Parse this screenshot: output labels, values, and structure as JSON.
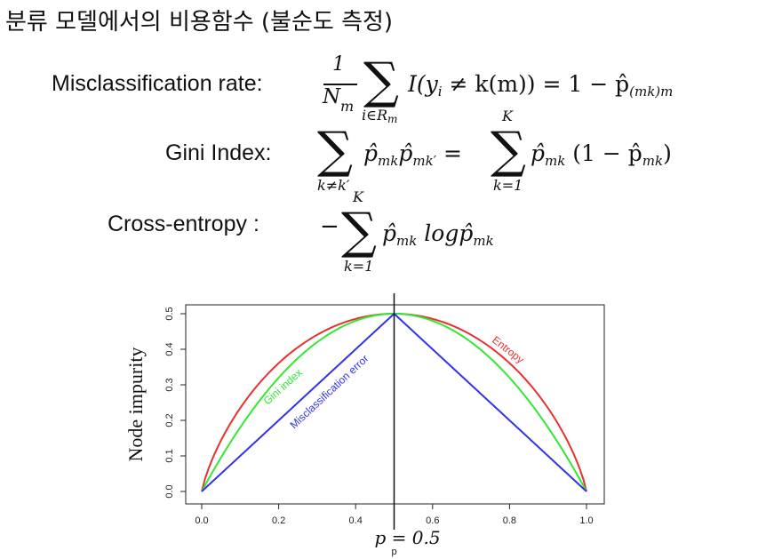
{
  "page": {
    "title": "분류 모델에서의 비용함수 (불순도 측정)"
  },
  "formulas": {
    "misclassification_label": "Misclassification rate:",
    "gini_label": "Gini Index:",
    "cross_entropy_label": "Cross-entropy  :",
    "mis_numerator": "1",
    "mis_denominator": "N",
    "mis_denominator_sub": "m",
    "mis_sum_sub": "i∈R",
    "mis_sum_sub_m": "m",
    "mis_body": "I(y",
    "mis_body_i": "i",
    "mis_body_rest": " ≠ k(m)) = 1 − p̂",
    "mis_body_sub": "(mk)m",
    "gini_sum_sub": "k≠k′",
    "gini_body": "p̂",
    "gini_body_sub1": "mk",
    "gini_body_p2": "p̂",
    "gini_body_sub2": "mk′",
    "gini_eq": " = ",
    "gini_sum2_top": "K",
    "gini_sum2_sub": "k=1",
    "gini_rhs_p": "p̂",
    "gini_rhs_sub": "mk",
    "gini_rhs_paren": " (1 − p̂",
    "gini_rhs_sub2": "mk",
    "gini_rhs_close": ")",
    "ce_minus": "−",
    "ce_sum_top": "K",
    "ce_sum_sub": "k=1",
    "ce_p": "p̂",
    "ce_p_sub": "mk",
    "ce_log": " logp̂",
    "ce_log_sub": "mk"
  },
  "chart_data": {
    "type": "line",
    "xlabel": "p",
    "ylabel": "Node impurity",
    "xlim": [
      0.0,
      1.0
    ],
    "ylim": [
      0.0,
      0.5
    ],
    "xticks": [
      "0.0",
      "0.2",
      "0.4",
      "0.6",
      "0.8",
      "1.0"
    ],
    "yticks": [
      "0.0",
      "0.1",
      "0.2",
      "0.3",
      "0.4",
      "0.5"
    ],
    "grid": false,
    "vline": {
      "x": 0.5,
      "label": "p = 0.5"
    },
    "x": [
      0.0,
      0.05,
      0.1,
      0.15,
      0.2,
      0.25,
      0.3,
      0.35,
      0.4,
      0.45,
      0.5,
      0.55,
      0.6,
      0.65,
      0.7,
      0.75,
      0.8,
      0.85,
      0.9,
      0.95,
      1.0
    ],
    "series": [
      {
        "name": "Entropy",
        "color": "#e8312f",
        "values": [
          0.0,
          0.143,
          0.234,
          0.305,
          0.361,
          0.406,
          0.441,
          0.467,
          0.485,
          0.496,
          0.5,
          0.496,
          0.485,
          0.467,
          0.441,
          0.406,
          0.361,
          0.305,
          0.234,
          0.143,
          0.0
        ]
      },
      {
        "name": "Gini index",
        "color": "#33e833",
        "values": [
          0.0,
          0.095,
          0.18,
          0.255,
          0.32,
          0.375,
          0.42,
          0.455,
          0.48,
          0.495,
          0.5,
          0.495,
          0.48,
          0.455,
          0.42,
          0.375,
          0.32,
          0.255,
          0.18,
          0.095,
          0.0
        ]
      },
      {
        "name": "Misclassification error",
        "color": "#3333ee",
        "values": [
          0.0,
          0.05,
          0.1,
          0.15,
          0.2,
          0.25,
          0.3,
          0.35,
          0.4,
          0.45,
          0.5,
          0.45,
          0.4,
          0.35,
          0.3,
          0.25,
          0.2,
          0.15,
          0.1,
          0.05,
          0.0
        ]
      }
    ]
  }
}
